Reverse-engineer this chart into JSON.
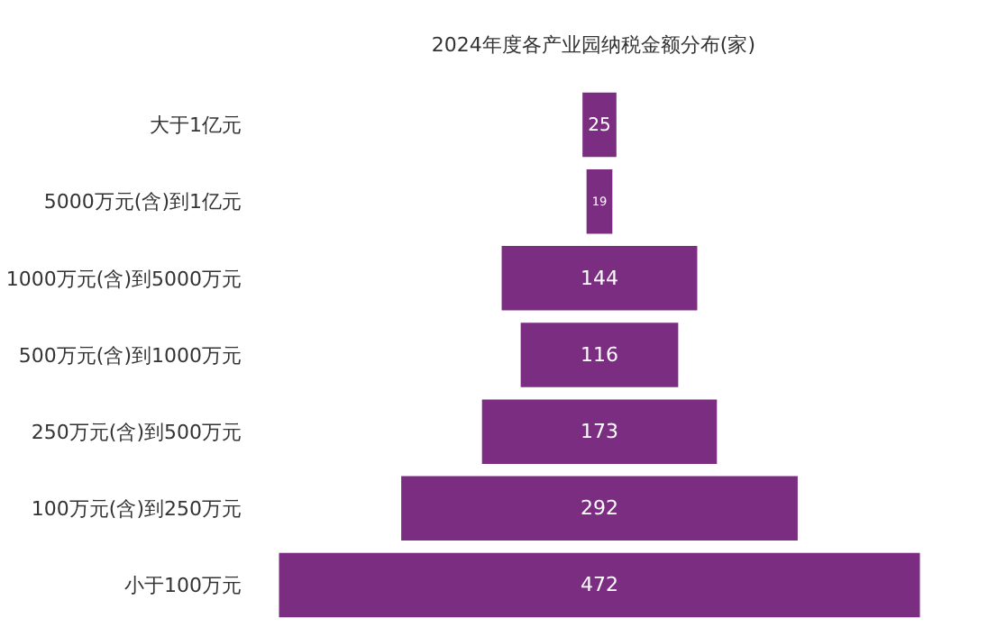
{
  "chart_data": {
    "type": "other",
    "title": "2024年度各产业园纳税金额分布(家)",
    "categories": [
      "大于1亿元",
      "5000万元(含)到1亿元",
      "1000万元(含)到5000万元",
      "500万元(含)到1000万元",
      "250万元(含)到500万元",
      "100万元(含)到250万元",
      "小于100万元"
    ],
    "values": [
      25,
      19,
      144,
      116,
      173,
      292,
      472
    ],
    "color": "#7b2d82",
    "data_labels": true
  }
}
